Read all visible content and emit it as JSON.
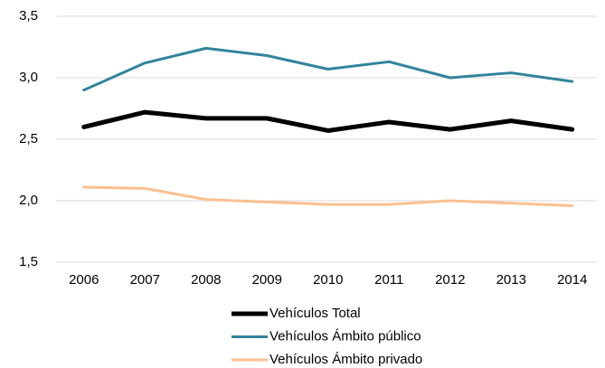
{
  "chart_data": {
    "type": "line",
    "categories": [
      "2006",
      "2007",
      "2008",
      "2009",
      "2010",
      "2011",
      "2012",
      "2013",
      "2014"
    ],
    "series": [
      {
        "name": "Vehículos Total",
        "color": "#000000",
        "values": [
          2.6,
          2.72,
          2.67,
          2.67,
          2.57,
          2.64,
          2.58,
          2.65,
          2.58
        ]
      },
      {
        "name": "Vehículos Ámbito público",
        "color": "#31849b",
        "values": [
          2.9,
          3.12,
          3.24,
          3.18,
          3.07,
          3.13,
          3.0,
          3.04,
          2.97
        ]
      },
      {
        "name": "Vehículos Ámbito privado",
        "color": "#fac090",
        "values": [
          2.11,
          2.1,
          2.01,
          1.99,
          1.97,
          1.97,
          2.0,
          1.98,
          1.96
        ]
      }
    ],
    "ylim": [
      1.5,
      3.5
    ],
    "yticks": [
      {
        "value": 1.5,
        "label": "1,5"
      },
      {
        "value": 2.0,
        "label": "2,0"
      },
      {
        "value": 2.5,
        "label": "2,5"
      },
      {
        "value": 3.0,
        "label": "3,0"
      },
      {
        "value": 3.5,
        "label": "3,5"
      }
    ],
    "grid": true
  }
}
